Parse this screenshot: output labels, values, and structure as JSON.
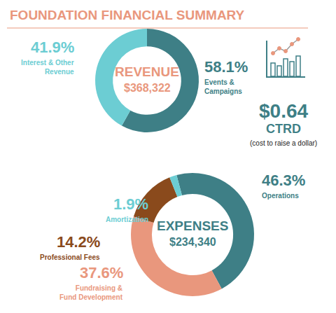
{
  "title": "FOUNDATION FINANCIAL SUMMARY",
  "chart_data": [
    {
      "type": "pie",
      "title": "REVENUE",
      "subtitle": "$368,322",
      "categories": [
        "Events & Campaigns",
        "Interest & Other Revenue"
      ],
      "values": [
        58.1,
        41.9
      ],
      "value_labels": [
        "58.1%",
        "41.9%"
      ],
      "colors": [
        "#3e7f86",
        "#6ccdd3"
      ],
      "data_labels": true
    },
    {
      "type": "pie",
      "title": "EXPENSES",
      "subtitle": "$234,340",
      "categories": [
        "Operations",
        "Fundraising & Fund Development",
        "Professional Fees",
        "Amortization"
      ],
      "values": [
        46.3,
        37.6,
        14.2,
        1.9
      ],
      "value_labels": [
        "46.3%",
        "37.6%",
        "14.2%",
        "1.9%"
      ],
      "colors": [
        "#3e7f86",
        "#e9977d",
        "#8a4a1c",
        "#6ccdd3"
      ],
      "data_labels": true
    }
  ],
  "stat": {
    "value": "$0.64",
    "label": "CTRD",
    "note": "(cost to raise a dollar)"
  }
}
